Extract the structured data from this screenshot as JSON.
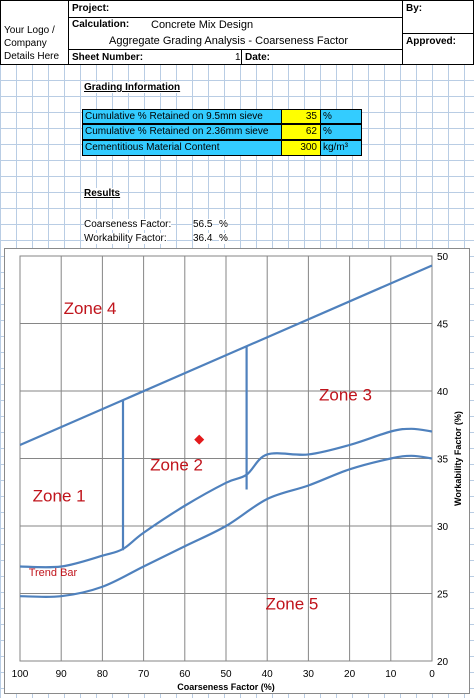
{
  "header": {
    "logo_line1": "Your Logo /",
    "logo_line2": "Company",
    "logo_line3": "Details Here",
    "project_label": "Project:",
    "calculation_label": "Calculation:",
    "calculation_value": "Concrete Mix Design",
    "subtitle": "Aggregate Grading Analysis - Coarseness Factor",
    "sheet_label": "Sheet Number:",
    "sheet_value": "1",
    "date_label": "Date:",
    "by_label": "By:",
    "approved_label": "Approved:"
  },
  "grading": {
    "title": "Grading Information",
    "rows": [
      {
        "label": "Cumulative % Retained on 9.5mm sieve",
        "value": "35",
        "unit": "%"
      },
      {
        "label": "Cumulative % Retained on 2.36mm sieve",
        "value": "62",
        "unit": "%"
      },
      {
        "label": "Cementitious Material Content",
        "value": "300",
        "unit": "kg/m³"
      }
    ]
  },
  "results": {
    "title": "Results",
    "coarseness_label": "Coarseness Factor:",
    "coarseness_value": "56.5",
    "coarseness_unit": "%",
    "workability_label": "Workability Factor:",
    "workability_value": "36.4",
    "workability_unit": "%"
  },
  "chart_data": {
    "type": "line",
    "xlabel": "Coarseness Factor (%)",
    "ylabel": "Workability Factor (%)",
    "xlim": [
      100,
      0
    ],
    "ylim": [
      20,
      50
    ],
    "x_ticks": [
      "100",
      "90",
      "80",
      "70",
      "60",
      "50",
      "40",
      "30",
      "20",
      "10",
      "0"
    ],
    "y_ticks": [
      "20",
      "25",
      "30",
      "35",
      "40",
      "45",
      "50"
    ],
    "grid": true,
    "series": [
      {
        "values": [
          [
            100,
            36
          ],
          [
            0,
            49.3
          ]
        ]
      },
      {
        "values": [
          [
            100,
            27
          ],
          [
            90,
            27
          ],
          [
            80,
            27.8
          ],
          [
            75,
            28.3
          ],
          [
            70,
            29.5
          ],
          [
            60,
            31.5
          ],
          [
            50,
            33.2
          ],
          [
            45,
            33.8
          ],
          [
            40,
            35.3
          ],
          [
            30,
            35.3
          ],
          [
            20,
            36
          ],
          [
            10,
            37
          ],
          [
            5,
            37.2
          ],
          [
            0,
            37
          ]
        ]
      },
      {
        "values": [
          [
            100,
            24.8
          ],
          [
            90,
            24.8
          ],
          [
            80,
            25.5
          ],
          [
            70,
            27
          ],
          [
            60,
            28.5
          ],
          [
            50,
            30
          ],
          [
            40,
            32
          ],
          [
            30,
            33
          ],
          [
            20,
            34.2
          ],
          [
            10,
            35
          ],
          [
            5,
            35.2
          ],
          [
            0,
            35
          ]
        ]
      },
      {
        "values": [
          [
            75,
            28.2
          ],
          [
            75,
            39.3
          ]
        ]
      },
      {
        "values": [
          [
            45,
            32.7
          ],
          [
            45,
            43.3
          ]
        ]
      }
    ],
    "point": {
      "x": 56.5,
      "y": 36.4
    },
    "annotations": [
      {
        "text": "Zone 4",
        "x": 83,
        "y": 45.7
      },
      {
        "text": "Zone 3",
        "x": 21,
        "y": 39.3
      },
      {
        "text": "Zone 2",
        "x": 62,
        "y": 34.1
      },
      {
        "text": "Zone 1",
        "x": 90.5,
        "y": 31.8
      },
      {
        "text": "Zone 5",
        "x": 34,
        "y": 23.8
      },
      {
        "text": "Trend Bar",
        "x": 92,
        "y": 26.3
      }
    ],
    "colors": {
      "line": "#4f81bd",
      "marker": "#e31a1c",
      "zone_text": "#c0141c"
    }
  }
}
